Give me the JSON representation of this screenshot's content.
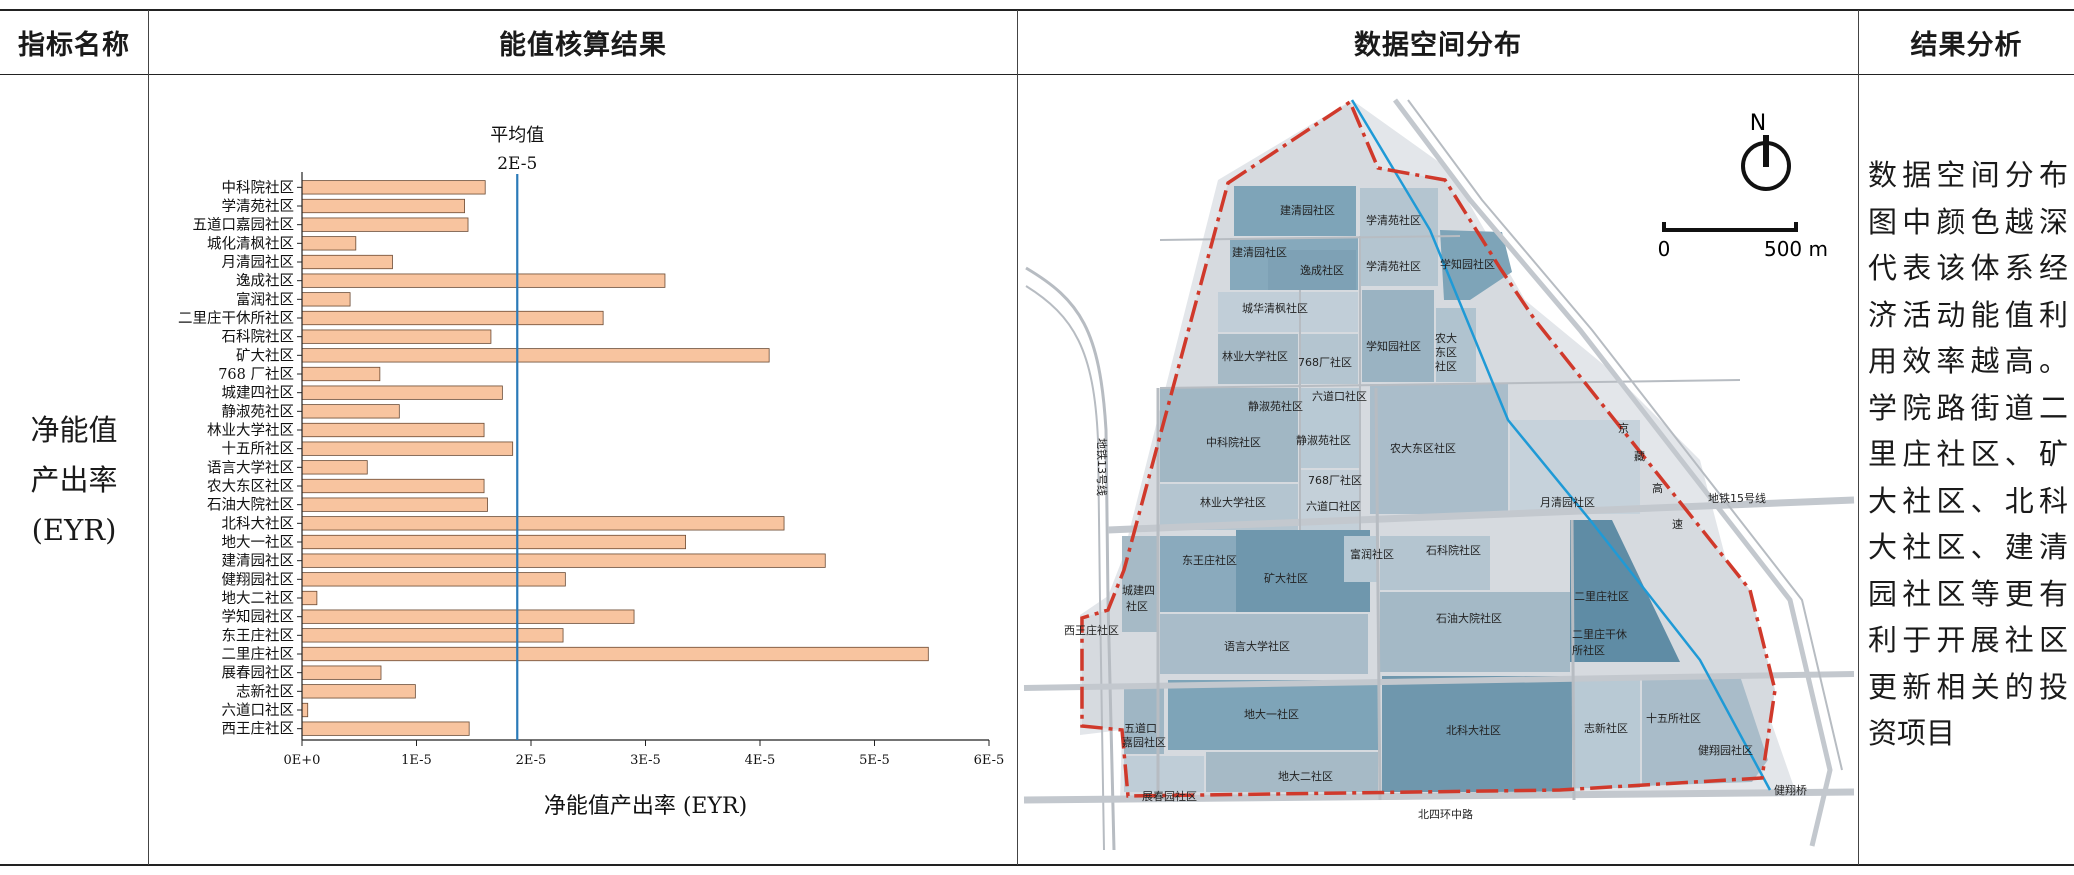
{
  "headers": {
    "indicator": "指标名称",
    "accounting": "能值核算结果",
    "spatial": "数据空间分布",
    "analysis": "结果分析"
  },
  "indicator": {
    "name_line1": "净能值",
    "name_line2": "产出率",
    "name_line3": "(EYR)"
  },
  "analysis_lines": [
    "数据空间分布",
    "图中颜色越深",
    "代表该体系经",
    "济活动能值利",
    "用效率越高。",
    "学院路街道二",
    "里庄社区、矿",
    "大社区、北科",
    "大社区、建清",
    "园社区等更有",
    "利于开展社区",
    "更新相关的投",
    "资项目"
  ],
  "chart_data": {
    "type": "bar",
    "orientation": "horizontal",
    "categories": [
      "中科院社区",
      "学清苑社区",
      "五道口嘉园社区",
      "城化清枫社区",
      "月清园社区",
      "逸成社区",
      "富润社区",
      "二里庄干休所社区",
      "石科院社区",
      "矿大社区",
      "768 厂社区",
      "城建四社区",
      "静淑苑社区",
      "林业大学社区",
      "十五所社区",
      "语言大学社区",
      "农大东区社区",
      "石油大院社区",
      "北科大社区",
      "地大一社区",
      "建清园社区",
      "健翔园社区",
      "地大二社区",
      "学知园社区",
      "东王庄社区",
      "二里庄社区",
      "展春园社区",
      "志新社区",
      "六道口社区",
      "西王庄社区"
    ],
    "values": [
      1.6e-05,
      1.42e-05,
      1.45e-05,
      4.7e-06,
      7.9e-06,
      3.17e-05,
      4.2e-06,
      2.63e-05,
      1.65e-05,
      4.08e-05,
      6.8e-06,
      1.75e-05,
      8.5e-06,
      1.59e-05,
      1.84e-05,
      5.7e-06,
      1.59e-05,
      1.62e-05,
      4.21e-05,
      3.35e-05,
      4.57e-05,
      2.3e-05,
      1.3e-06,
      2.9e-05,
      2.28e-05,
      5.47e-05,
      6.9e-06,
      9.9e-06,
      5e-07,
      1.46e-05
    ],
    "xlim": [
      0,
      6e-05
    ],
    "xticks": [
      "0E+0",
      "1E-5",
      "2E-5",
      "3E-5",
      "4E-5",
      "5E-5",
      "6E-5"
    ],
    "xlabel": "净能值产出率 (EYR)",
    "mean_value": 1.88e-05,
    "mean_label_line1": "平均值",
    "mean_label_line2": "2E-5",
    "bar_color": "#f8c49f",
    "bar_edge": "#6b4a33",
    "mean_color": "#2a7ab8",
    "grid": false
  },
  "map": {
    "north_label": "N",
    "scale_start": "0",
    "scale_end": "500 m",
    "boundary_color": "#d0392b",
    "river_color": "#1f9ad6",
    "labels": {
      "jianqingyuan1": "建清园社区",
      "xueqingyuan1": "学清苑社区",
      "jianqingyuan2": "建清园社区",
      "yicheng": "逸成社区",
      "xueqingyuan2": "学清苑社区",
      "xuezhiyuan1": "学知园社区",
      "chenghua": "城华清枫社区",
      "linye1": "林业大学社区",
      "chang768a": "768厂社区",
      "xuezhiyuan2": "学知园社区",
      "nongda_l1": "农大",
      "nongda_l2": "东区",
      "nongda_l3": "社区",
      "jingshu1": "静淑苑社区",
      "liudaokou1": "六道口社区",
      "zhongkeyuan": "中科院社区",
      "jingshu2": "静淑苑社区",
      "nongdadongqu": "农大东区社区",
      "chang768b": "768厂社区",
      "linye2": "林业大学社区",
      "liudaokou2": "六道口社区",
      "yueqingyuan": "月清园社区",
      "dongwangzhuang": "东王庄社区",
      "fu_run": "富润社区",
      "shikeyuan": "石科院社区",
      "kuangda": "矿大社区",
      "chengjian_l1": "城建四",
      "chengjian_l2": "社区",
      "xiwangzhuang": "西王庄社区",
      "yuyan": "语言大学社区",
      "shiyou": "石油大院社区",
      "erlizhuang": "二里庄社区",
      "erlizhuang_gx_l1": "二里庄干休",
      "erlizhuang_gx_l2": "所社区",
      "wudaokou_l1": "五道口",
      "wudaokou_l2": "嘉园社区",
      "dida1": "地大一社区",
      "beikeda": "北科大社区",
      "zhixin": "志新社区",
      "shiwusuo": "十五所社区",
      "jianxiangyuan": "健翔园社区",
      "zhanchunyuan": "展春园社区",
      "dida2": "地大二社区",
      "metro13": "地铁13号线",
      "metro15": "地铁15号线",
      "jing": "京",
      "zang": "藏",
      "gao": "高",
      "su": "速",
      "beisihuan": "北四环中路",
      "jianxiangqiao": "健翔桥"
    }
  }
}
